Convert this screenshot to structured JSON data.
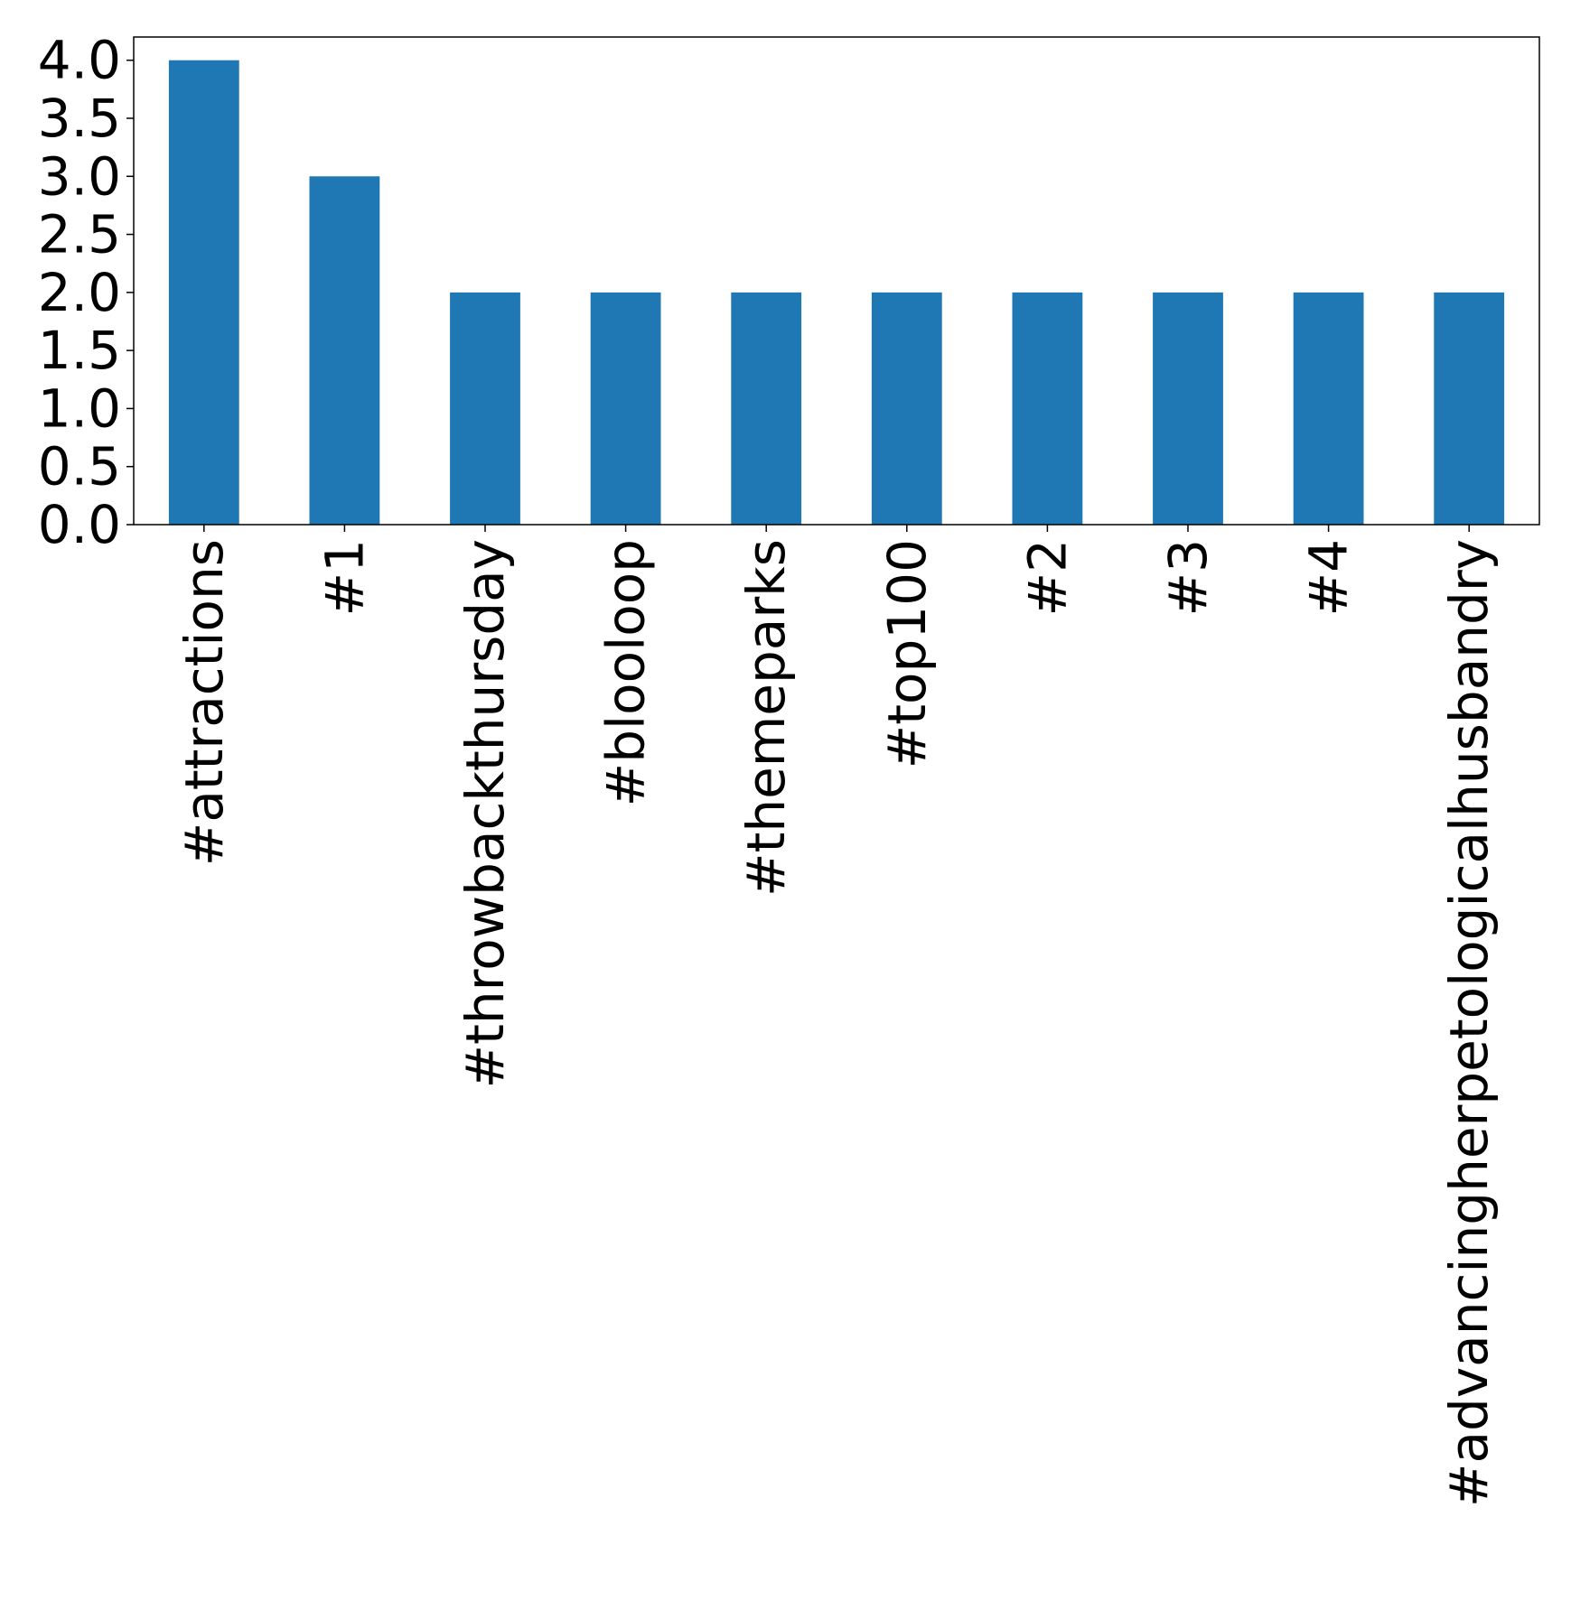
{
  "chart_data": {
    "type": "bar",
    "title": "",
    "xlabel": "",
    "ylabel": "",
    "categories": [
      "#attractions",
      "#1",
      "#throwbackthursday",
      "#blooloop",
      "#themeparks",
      "#top100",
      "#2",
      "#3",
      "#4",
      "#advancingherpetologicalhusbandry"
    ],
    "values": [
      4,
      3,
      2,
      2,
      2,
      2,
      2,
      2,
      2,
      2
    ],
    "ylim": [
      0,
      4.2
    ],
    "yticks": [
      0.0,
      0.5,
      1.0,
      1.5,
      2.0,
      2.5,
      3.0,
      3.5,
      4.0
    ],
    "ytick_labels": [
      "0.0",
      "0.5",
      "1.0",
      "1.5",
      "2.0",
      "2.5",
      "3.0",
      "3.5",
      "4.0"
    ],
    "bar_color": "#1f77b4",
    "grid": false,
    "legend": "none"
  }
}
